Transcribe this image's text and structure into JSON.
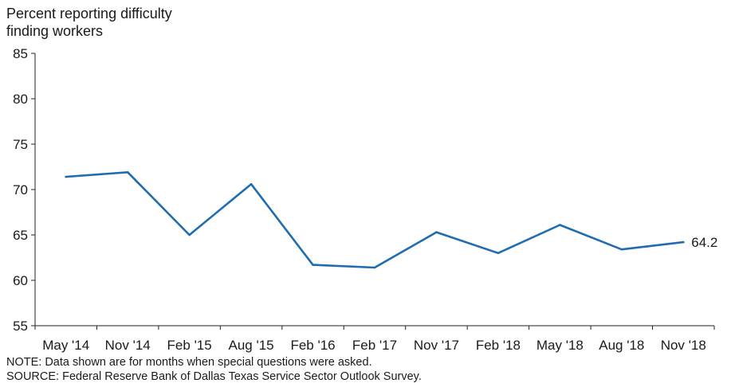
{
  "chart_data": {
    "type": "line",
    "ylabel_lines": [
      "Percent reporting difficulty",
      "finding workers"
    ],
    "categories": [
      "May '14",
      "Nov '14",
      "Feb '15",
      "Aug '15",
      "Feb '16",
      "Feb '17",
      "Nov '17",
      "Feb '18",
      "May '18",
      "Aug '18",
      "Nov '18"
    ],
    "series": [
      {
        "values": [
          71.4,
          71.9,
          65.0,
          70.6,
          61.7,
          61.4,
          65.3,
          63.0,
          66.1,
          63.4,
          64.2
        ],
        "color": "#1f6cb0"
      }
    ],
    "ylim": [
      55,
      85
    ],
    "yticks": [
      55,
      60,
      65,
      70,
      75,
      80,
      85
    ],
    "end_label": "64.2",
    "grid": false
  },
  "notes": {
    "note": "NOTE: Data shown are for months when special questions were asked.",
    "source": "SOURCE: Federal Reserve Bank of Dallas Texas Service Sector Outlook Survey."
  }
}
